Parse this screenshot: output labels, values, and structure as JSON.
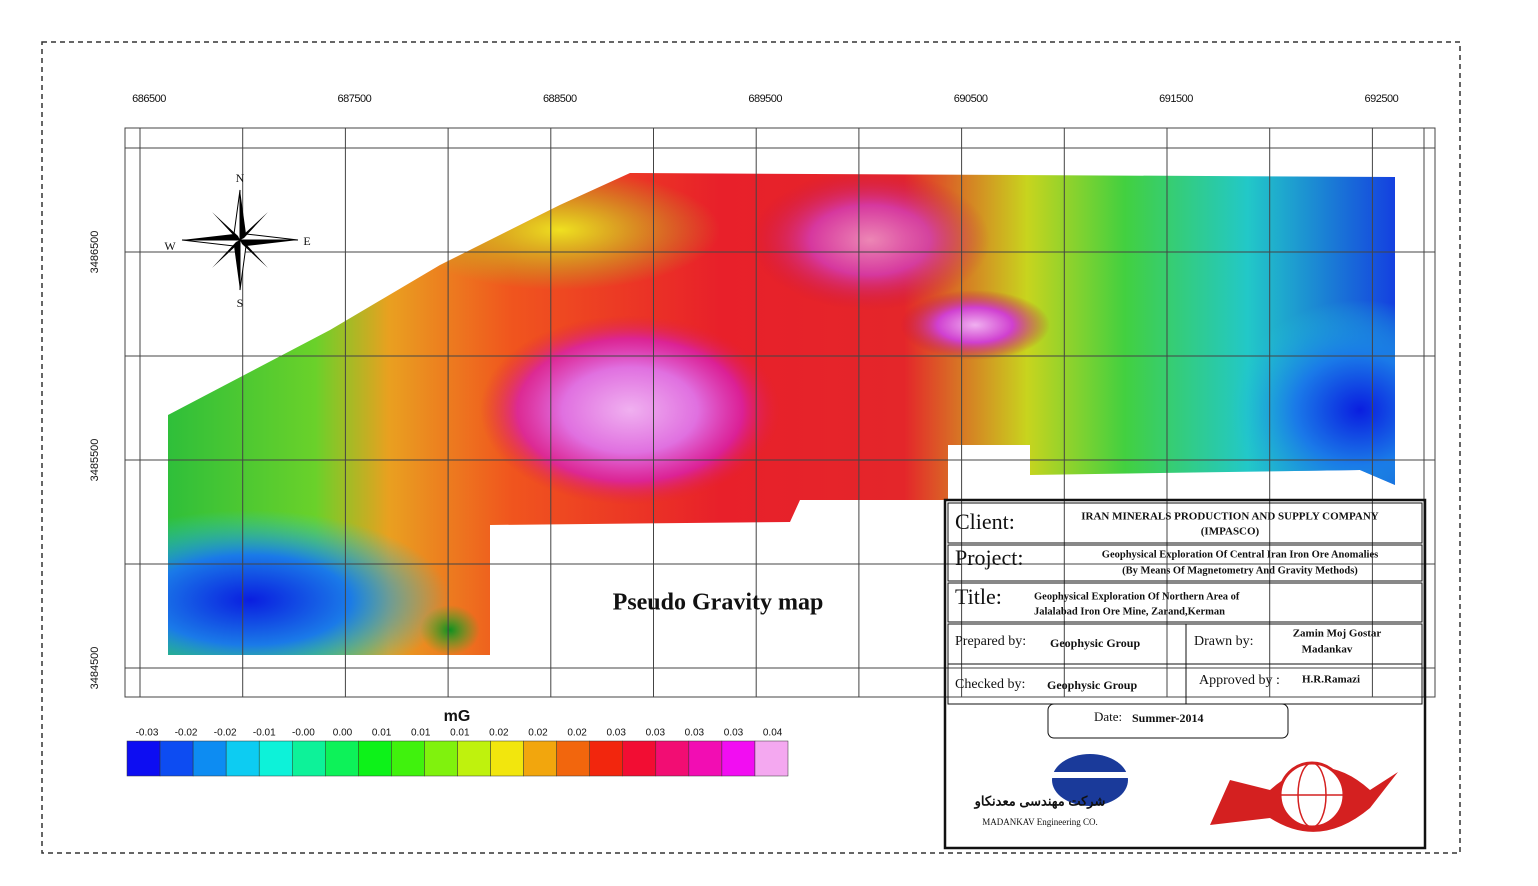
{
  "map": {
    "title": "Pseudo Gravity map",
    "x_labels": [
      "686500",
      "687500",
      "688500",
      "689500",
      "690500",
      "691500",
      "692500"
    ],
    "y_labels": [
      "3486500",
      "3485500",
      "3484500"
    ],
    "compass": {
      "n": "N",
      "e": "E",
      "s": "S",
      "w": "W"
    }
  },
  "legend": {
    "unit": "mG",
    "labels": [
      "-0.03",
      "-0.02",
      "-0.02",
      "-0.01",
      "-0.00",
      "0.00",
      "0.01",
      "0.01",
      "0.01",
      "0.02",
      "0.02",
      "0.02",
      "0.03",
      "0.03",
      "0.03",
      "0.03",
      "0.04"
    ]
  },
  "title_block": {
    "client_label": "Client:",
    "client": "IRAN MINERALS PRODUCTION AND SUPPLY COMPANY",
    "client_abbr": "(IMPASCO)",
    "project_label": "Project:",
    "project_lines": [
      "Geophysical Exploration Of Central Iran Iron Ore Anomalies",
      "(By Means Of Magnetometry And Gravity Methods)"
    ],
    "title_label": "Title:",
    "title_lines": [
      "Geophysical Exploration  Of  Northern Area of",
      "Jalalabad Iron Ore Mine, Zarand,Kerman"
    ],
    "prepared_label": "Prepared by:",
    "prepared": "Geophysic  Group",
    "drawn_label": "Drawn by:",
    "drawn_lines": [
      "Zamin  Moj  Gostar",
      "Madankav"
    ],
    "checked_label": "Checked by:",
    "checked": "Geophysic  Group",
    "approved_label": "Approved by :",
    "approved": "H.R.Ramazi",
    "date_label": "Date:",
    "date": "Summer-2014"
  },
  "logos": {
    "madankav_fa": "شرکت مهندسی معدنکاو",
    "madankav_en": "MADANKAV Engineering CO."
  }
}
